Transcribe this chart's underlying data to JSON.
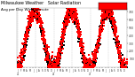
{
  "title": "Milwaukee Weather   Solar Radiation",
  "subtitle": "Avg per Day W/m²/minute",
  "bg_color": "#ffffff",
  "plot_bg_color": "#ffffff",
  "grid_color": "#aaaaaa",
  "ylim": [
    0,
    750
  ],
  "yticks": [
    100,
    200,
    300,
    400,
    500,
    600,
    700
  ],
  "title_fontsize": 3.5,
  "dot_size": 1.0,
  "red_color": "#ff0000",
  "black_color": "#000000",
  "legend_box_color": "#ff0000",
  "num_years": 3,
  "points_per_year": 365
}
